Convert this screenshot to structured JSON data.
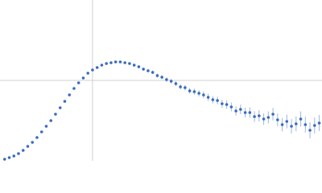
{
  "chart_data": {
    "type": "scatter",
    "x": [
      0.05,
      0.1,
      0.15,
      0.2,
      0.25,
      0.3,
      0.35,
      0.4,
      0.45,
      0.5,
      0.55,
      0.6,
      0.65,
      0.7,
      0.75,
      0.8,
      0.85,
      0.9,
      0.95,
      1.0,
      1.05,
      1.1,
      1.15,
      1.2,
      1.25,
      1.3,
      1.35,
      1.4,
      1.45,
      1.5,
      1.55,
      1.6,
      1.65,
      1.7,
      1.75,
      1.8,
      1.85,
      1.9,
      1.95,
      2.0,
      2.05,
      2.1,
      2.15,
      2.2,
      2.25,
      2.3,
      2.35,
      2.4,
      2.45,
      2.5,
      2.55,
      2.6,
      2.65,
      2.7,
      2.75,
      2.8,
      2.85,
      2.9,
      2.95,
      3.0,
      3.05,
      3.1,
      3.15,
      3.2,
      3.25,
      3.3,
      3.35,
      3.4,
      3.45
    ],
    "series": [
      {
        "color": "#3a6bc0",
        "error_color": "#9fb8e0",
        "values": [
          0.02,
          0.04,
          0.06,
          0.09,
          0.13,
          0.18,
          0.23,
          0.29,
          0.36,
          0.43,
          0.5,
          0.58,
          0.66,
          0.74,
          0.82,
          0.9,
          0.97,
          1.03,
          1.09,
          1.13,
          1.16,
          1.19,
          1.21,
          1.22,
          1.23,
          1.23,
          1.22,
          1.21,
          1.19,
          1.17,
          1.14,
          1.12,
          1.1,
          1.06,
          1.04,
          1.01,
          0.99,
          0.96,
          0.92,
          0.91,
          0.87,
          0.86,
          0.84,
          0.82,
          0.79,
          0.76,
          0.75,
          0.71,
          0.7,
          0.67,
          0.62,
          0.64,
          0.6,
          0.6,
          0.55,
          0.56,
          0.52,
          0.54,
          0.58,
          0.51,
          0.45,
          0.49,
          0.43,
          0.46,
          0.52,
          0.45,
          0.38,
          0.44,
          0.47
        ],
        "errors": [
          0.005,
          0.005,
          0.005,
          0.005,
          0.005,
          0.005,
          0.005,
          0.005,
          0.005,
          0.005,
          0.006,
          0.006,
          0.006,
          0.007,
          0.007,
          0.007,
          0.008,
          0.008,
          0.008,
          0.009,
          0.01,
          0.01,
          0.011,
          0.012,
          0.013,
          0.014,
          0.015,
          0.016,
          0.017,
          0.018,
          0.02,
          0.021,
          0.022,
          0.024,
          0.025,
          0.027,
          0.028,
          0.03,
          0.032,
          0.034,
          0.036,
          0.038,
          0.04,
          0.042,
          0.044,
          0.046,
          0.048,
          0.05,
          0.052,
          0.055,
          0.057,
          0.06,
          0.062,
          0.065,
          0.067,
          0.07,
          0.072,
          0.075,
          0.078,
          0.08,
          0.083,
          0.086,
          0.089,
          0.092,
          0.095,
          0.098,
          0.1,
          0.1,
          0.1
        ]
      }
    ],
    "xlim": [
      0,
      3.48
    ],
    "ylim": [
      0,
      2
    ],
    "xticks": [
      1
    ],
    "yticks": [
      1
    ],
    "grid": true
  }
}
